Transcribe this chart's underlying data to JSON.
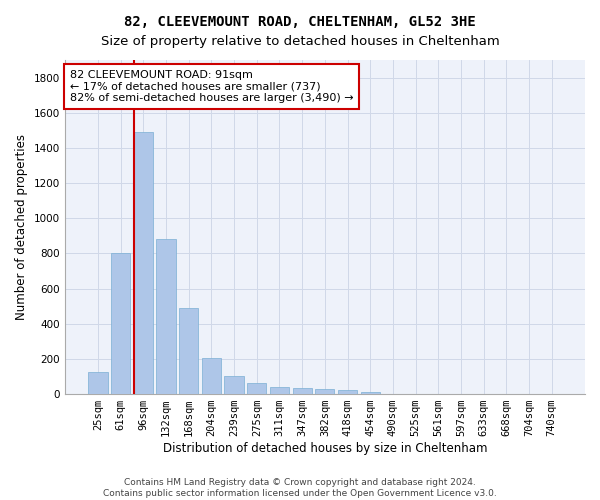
{
  "title": "82, CLEEVEMOUNT ROAD, CHELTENHAM, GL52 3HE",
  "subtitle": "Size of property relative to detached houses in Cheltenham",
  "xlabel": "Distribution of detached houses by size in Cheltenham",
  "ylabel": "Number of detached properties",
  "categories": [
    "25sqm",
    "61sqm",
    "96sqm",
    "132sqm",
    "168sqm",
    "204sqm",
    "239sqm",
    "275sqm",
    "311sqm",
    "347sqm",
    "382sqm",
    "418sqm",
    "454sqm",
    "490sqm",
    "525sqm",
    "561sqm",
    "597sqm",
    "633sqm",
    "668sqm",
    "704sqm",
    "740sqm"
  ],
  "values": [
    125,
    800,
    1490,
    880,
    490,
    205,
    105,
    65,
    42,
    35,
    30,
    22,
    10,
    0,
    0,
    0,
    0,
    0,
    0,
    0,
    0
  ],
  "bar_color": "#aec6e8",
  "bar_edge_color": "#7bafd4",
  "vline_x_index": 2,
  "vline_color": "#cc0000",
  "annotation_text": "82 CLEEVEMOUNT ROAD: 91sqm\n← 17% of detached houses are smaller (737)\n82% of semi-detached houses are larger (3,490) →",
  "annotation_box_color": "#ffffff",
  "annotation_box_edge": "#cc0000",
  "ylim": [
    0,
    1900
  ],
  "yticks": [
    0,
    200,
    400,
    600,
    800,
    1000,
    1200,
    1400,
    1600,
    1800
  ],
  "grid_color": "#d0d8e8",
  "bg_color": "#eef2fa",
  "footer": "Contains HM Land Registry data © Crown copyright and database right 2024.\nContains public sector information licensed under the Open Government Licence v3.0.",
  "title_fontsize": 10,
  "subtitle_fontsize": 9.5,
  "axis_label_fontsize": 8.5,
  "tick_fontsize": 7.5,
  "annotation_fontsize": 8,
  "footer_fontsize": 6.5
}
